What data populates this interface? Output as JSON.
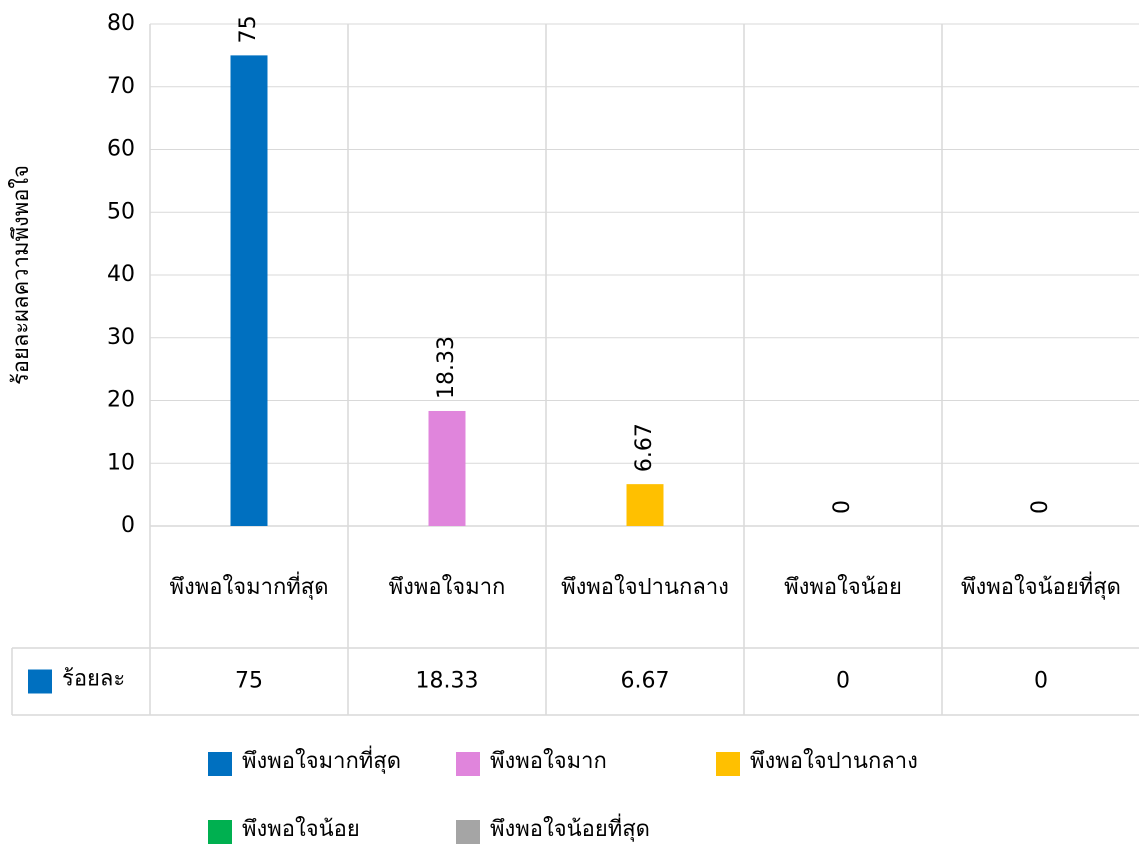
{
  "chart_data": {
    "type": "bar",
    "y_axis_label": "ร้อยละผลความพึงพอใจ",
    "categories": [
      "พึงพอใจมากที่สุด",
      "พึงพอใจมาก",
      "พึงพอใจปานกลาง",
      "พึงพอใจน้อย",
      "พึงพอใจน้อยที่สุด"
    ],
    "colors": [
      "#0070c0",
      "#e085dc",
      "#ffc000",
      "#00b050",
      "#a5a5a5"
    ],
    "series": [
      {
        "name": "ร้อยละ",
        "color": "#0070c0",
        "values": [
          75,
          18.33,
          6.67,
          0,
          0
        ]
      }
    ],
    "ylim": [
      0,
      80
    ],
    "yticks": [
      0,
      10,
      20,
      30,
      40,
      50,
      60,
      70,
      80
    ],
    "grid": true,
    "data_table": true
  }
}
